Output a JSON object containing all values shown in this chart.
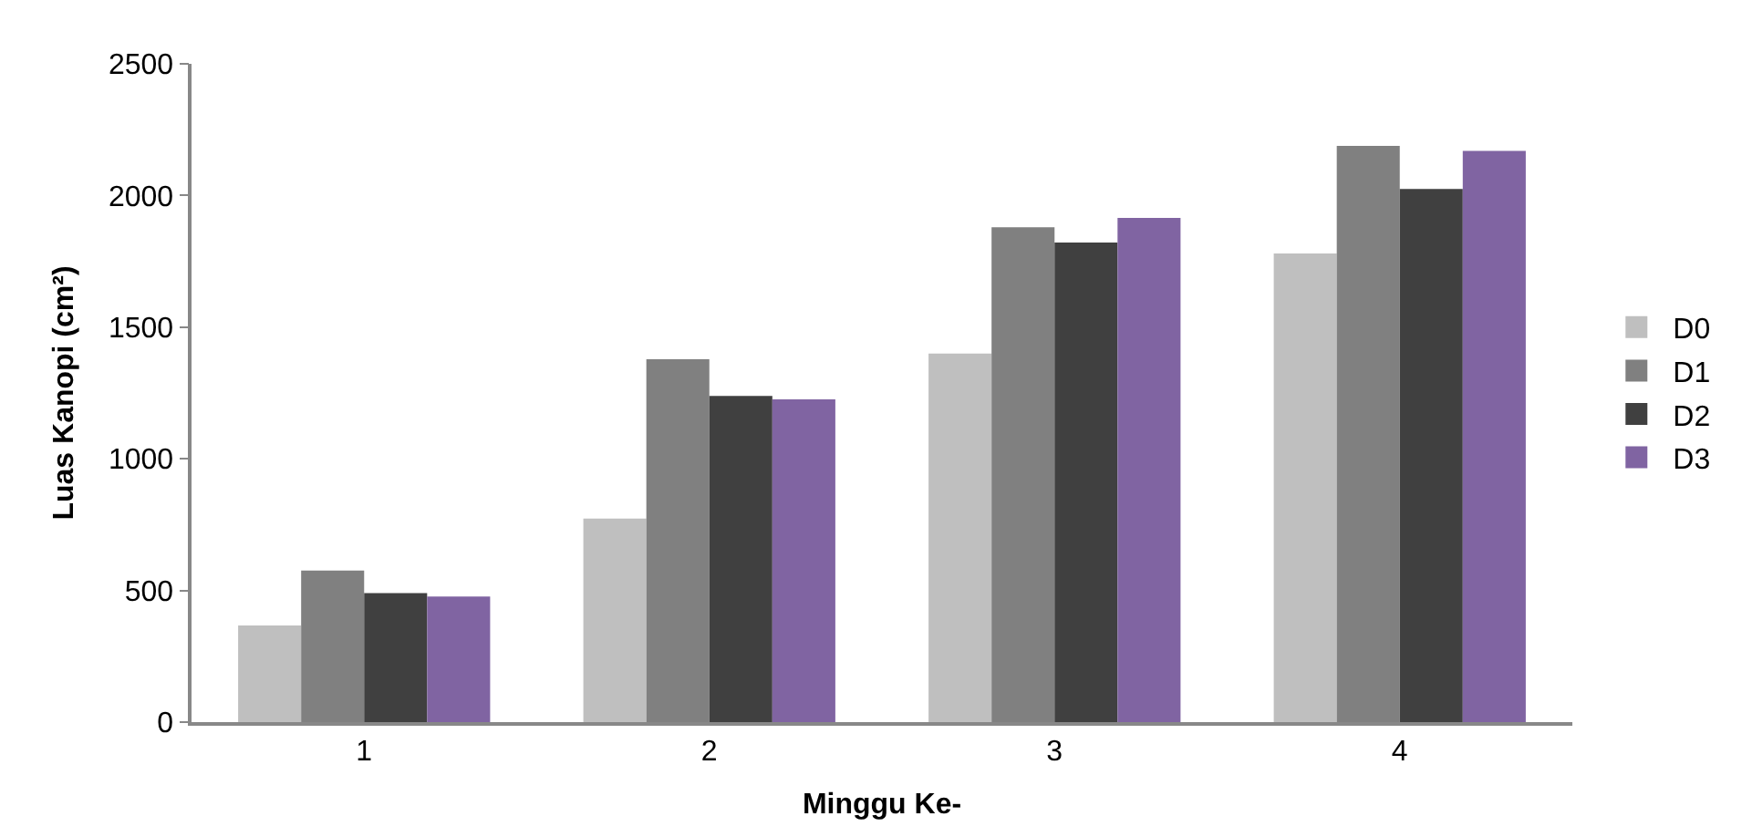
{
  "chart_data": {
    "type": "bar",
    "xlabel": "Minggu Ke-",
    "ylabel": "Luas Kanopi (cm²)",
    "categories": [
      "1",
      "2",
      "3",
      "4"
    ],
    "series": [
      {
        "name": "D0",
        "color": "#bfbfbf",
        "values": [
          367,
          773,
          1400,
          1780
        ]
      },
      {
        "name": "D1",
        "color": "#808080",
        "values": [
          576,
          1378,
          1879,
          2188
        ]
      },
      {
        "name": "D2",
        "color": "#404040",
        "values": [
          490,
          1239,
          1821,
          2025
        ]
      },
      {
        "name": "D3",
        "color": "#8064a2",
        "values": [
          477,
          1226,
          1915,
          2169
        ]
      }
    ],
    "ylim": [
      0,
      2500
    ],
    "yticks": [
      0,
      500,
      1000,
      1500,
      2000,
      2500
    ],
    "legend": "right"
  }
}
